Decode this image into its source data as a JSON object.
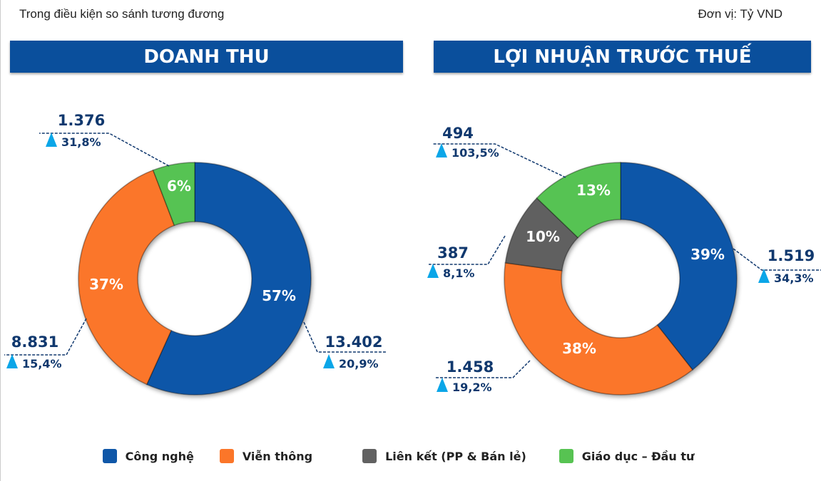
{
  "subtitle": "Trong điều kiện so sánh tương đương",
  "unit": "Đơn vị: Tỷ VND",
  "colors": {
    "cong_nghe": "#0f57a8",
    "vien_thong": "#fb7629",
    "lien_ket": "#616161",
    "giao_duc": "#57c352",
    "banner": "#0a4f9c",
    "label": "#10386e",
    "arrow": "#0ba6e8"
  },
  "legend": [
    {
      "label": "Công nghệ",
      "color": "#0f57a8"
    },
    {
      "label": "Viễn thông",
      "color": "#fb7629"
    },
    {
      "label": "Liên kết (PP & Bán lẻ)",
      "color": "#616161"
    },
    {
      "label": "Giáo dục – Đầu tư",
      "color": "#57c352"
    }
  ],
  "chart_data": [
    {
      "type": "pie",
      "title": "DOANH THU",
      "categories": [
        "Công nghệ",
        "Viễn thông",
        "Giáo dục – Đầu tư"
      ],
      "values": [
        13402,
        8831,
        1376
      ],
      "value_labels": [
        "13.402",
        "8.831",
        "1.376"
      ],
      "percent_labels": [
        "57%",
        "37%",
        "6%"
      ],
      "growth_labels": [
        "20,9%",
        "15,4%",
        "31,8%"
      ],
      "colors": [
        "#0f57a8",
        "#fb7629",
        "#57c352"
      ],
      "donut": true,
      "start": "top",
      "direction": "clockwise"
    },
    {
      "type": "pie",
      "title": "LỢI NHUẬN TRƯỚC THUẾ",
      "categories": [
        "Công nghệ",
        "Viễn thông",
        "Liên kết (PP & Bán lẻ)",
        "Giáo dục – Đầu tư"
      ],
      "values": [
        1519,
        1458,
        387,
        494
      ],
      "value_labels": [
        "1.519",
        "1.458",
        "387",
        "494"
      ],
      "percent_labels": [
        "39%",
        "38%",
        "10%",
        "13%"
      ],
      "growth_labels": [
        "34,3%",
        "19,2%",
        "8,1%",
        "103,5%"
      ],
      "colors": [
        "#0f57a8",
        "#fb7629",
        "#616161",
        "#57c352"
      ],
      "donut": true,
      "start": "top",
      "direction": "clockwise"
    }
  ]
}
